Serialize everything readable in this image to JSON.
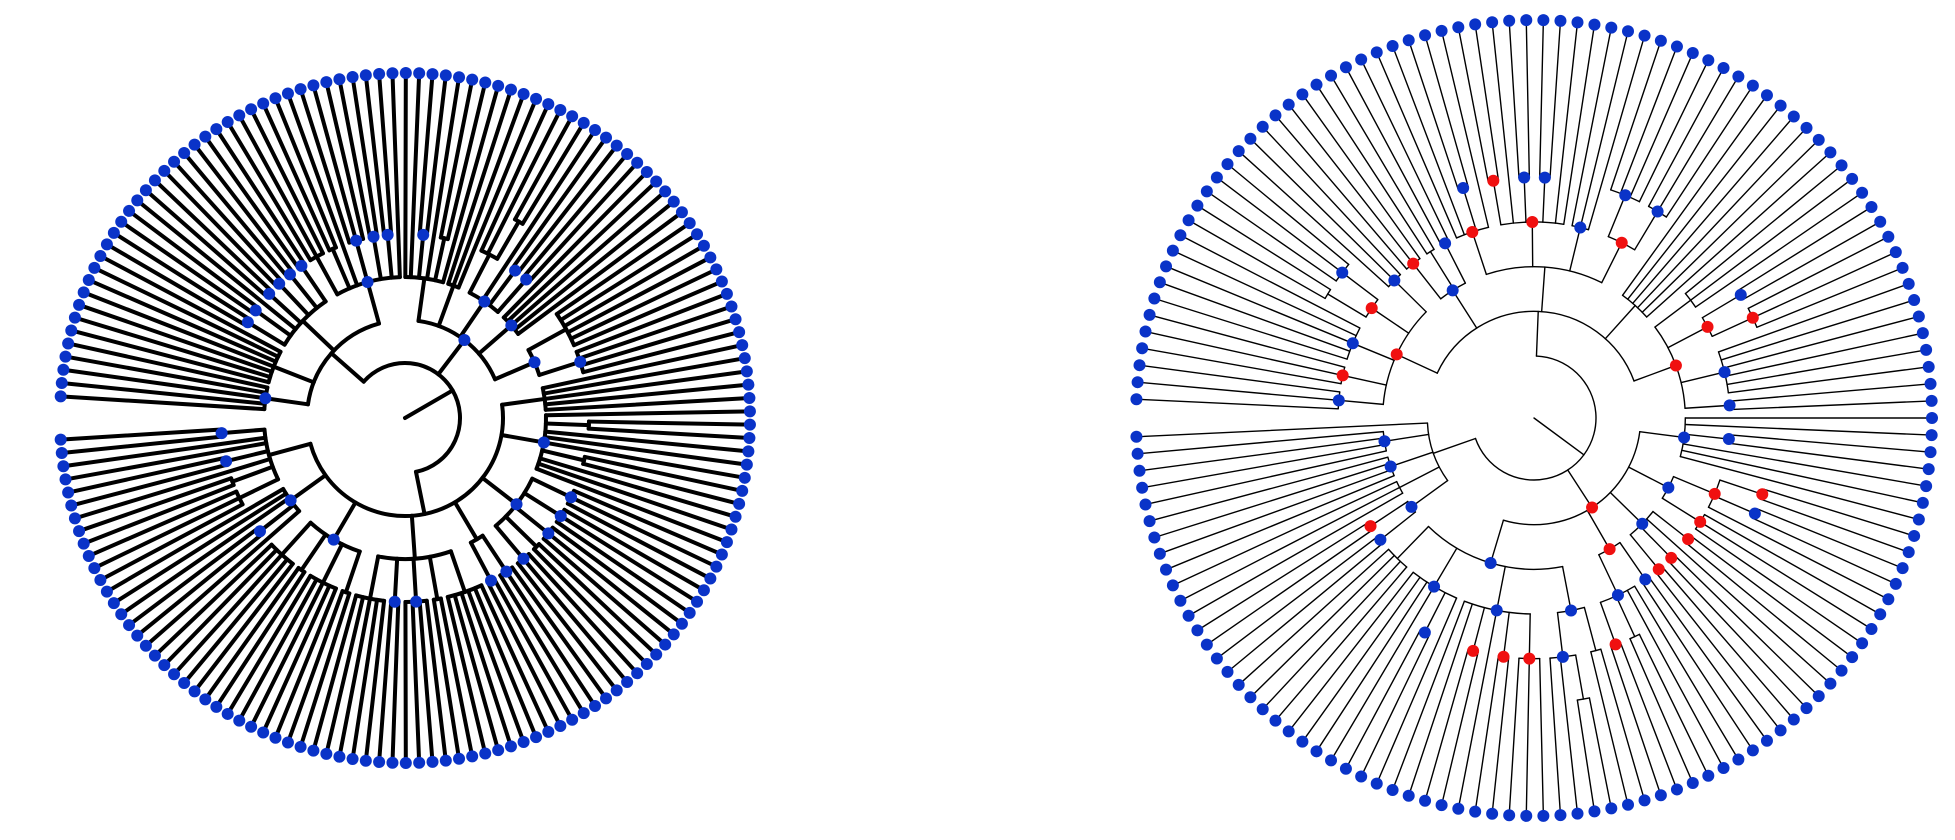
{
  "colors": {
    "background": "#ffffff",
    "edge": "#000000",
    "node_blue": "#0a33c8",
    "node_red": "#f01010"
  },
  "trees": [
    {
      "id": "left-tree",
      "description_type": "circular dendrogram",
      "edge_style": "thick",
      "leaf_count": 160,
      "node_color": "blue",
      "marked_nodes": "none"
    },
    {
      "id": "right-tree",
      "description_type": "circular dendrogram",
      "edge_style": "thin",
      "leaf_count": 145,
      "node_color": "blue",
      "marked_nodes": "red"
    }
  ]
}
